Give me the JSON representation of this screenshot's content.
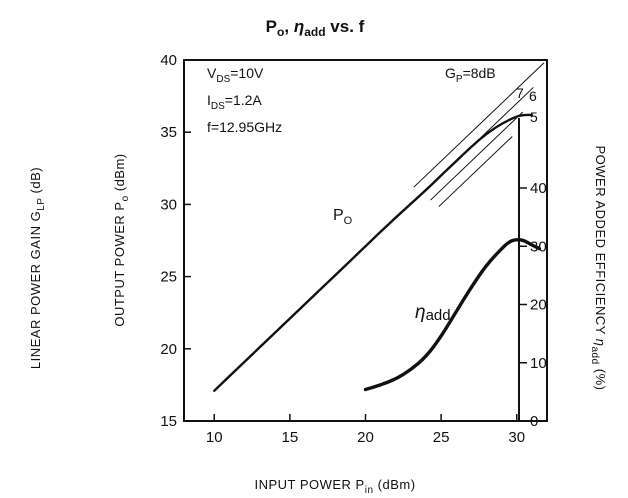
{
  "chart_data": {
    "type": "line",
    "title_parts": {
      "po": "P",
      "po_sub": "o",
      "comma": ",",
      "eta": "η",
      "eta_sub": "add",
      "tail": "vs. f"
    },
    "xlabel": {
      "text": "INPUT POWER P",
      "sub": "in",
      "unit": " (dBm)"
    },
    "ylabel_left_outer": {
      "text": "LINEAR POWER GAIN G",
      "sub": "LP",
      "unit": " (dB)"
    },
    "ylabel_left": {
      "text": "OUTPUT POWER P",
      "sub": "o",
      "unit": " (dBm)"
    },
    "ylabel_right": {
      "text": "POWER ADDED EFFICIENCY ",
      "eta": "η",
      "sub": "add",
      "unit": " (%)"
    },
    "xlim": [
      8,
      32
    ],
    "ylim_left": [
      15,
      40
    ],
    "ylim_right": [
      0,
      40
    ],
    "x_ticks": [
      10,
      15,
      20,
      25,
      30
    ],
    "y_ticks_left": [
      15,
      20,
      25,
      30,
      35,
      40
    ],
    "y_ticks_right": [
      0,
      10,
      20,
      30,
      40
    ],
    "conditions": [
      {
        "text": "V",
        "sub": "DS",
        "tail": "=10V"
      },
      {
        "text": "I",
        "sub": "DS",
        "tail": "=1.2A"
      },
      {
        "text": "f=12.95GHz",
        "sub": "",
        "tail": ""
      }
    ],
    "gain_lines": {
      "label": "G",
      "label_sub": "P",
      "label_tail": "=8dB",
      "values_db": [
        8,
        7,
        6,
        5
      ],
      "value_labels": [
        "",
        "7",
        "6",
        "5"
      ]
    },
    "series": [
      {
        "name": "P",
        "name_sub": "O",
        "axis": "left",
        "x": [
          10,
          12,
          14,
          16,
          18,
          20,
          22,
          24,
          25,
          26,
          27,
          28,
          29,
          30,
          30.5,
          31
        ],
        "y": [
          17.1,
          19.1,
          21.1,
          23.1,
          25.1,
          27.1,
          29.1,
          31.0,
          32.0,
          33.0,
          34.0,
          34.9,
          35.6,
          36.1,
          36.2,
          36.2
        ]
      },
      {
        "name": "η",
        "name_sub": "add",
        "axis": "right",
        "x": [
          20,
          21,
          22,
          23,
          24,
          25,
          26,
          27,
          28,
          29,
          29.5,
          30,
          30.5,
          31,
          31.5
        ],
        "y": [
          5.4,
          6.2,
          7.2,
          8.8,
          11.0,
          14.5,
          18.8,
          23.0,
          26.8,
          29.6,
          30.8,
          31.2,
          31.0,
          30.2,
          29.6
        ]
      }
    ]
  }
}
